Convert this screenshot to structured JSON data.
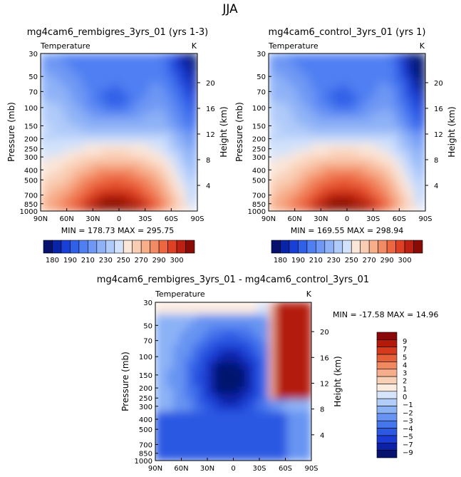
{
  "page_title": "JJA",
  "colors": {
    "cold": [
      "#06126e",
      "#0a24a8",
      "#1a3fd6",
      "#3060e8",
      "#4f7ff2",
      "#6e98f4",
      "#8fb2f7",
      "#b0cbf9",
      "#d2e2fb",
      "#fbe6d8",
      "#f9cdb4",
      "#f7ae8b",
      "#f28a63",
      "#ec6640",
      "#de4024",
      "#bb2010",
      "#8a0a06"
    ],
    "diff": [
      "#06126e",
      "#0c22a6",
      "#1a3cd4",
      "#2c58e2",
      "#4676ec",
      "#6794f2",
      "#8cb2f6",
      "#b2cdf8",
      "#d6e4fb",
      "#fcebdf",
      "#f8d0b6",
      "#f5ad8c",
      "#f08862",
      "#e55f38",
      "#d53a1c",
      "#b31a0a",
      "#8a0808"
    ]
  },
  "chart_data": [
    {
      "type": "contour",
      "title": "mg4cam6_rembigres_3yrs_01 (yrs 1-3)",
      "subtitle_left": "Temperature",
      "subtitle_right": "K",
      "xlabel": "",
      "ylabel": "Pressure (mb)",
      "ylabel_right": "Height (km)",
      "xticks": [
        "90N",
        "60N",
        "30N",
        "0",
        "30S",
        "60S",
        "90S"
      ],
      "yticks": [
        30,
        50,
        70,
        100,
        150,
        200,
        250,
        300,
        400,
        500,
        700,
        850,
        1000
      ],
      "height_ticks": [
        4,
        8,
        12,
        16,
        20
      ],
      "stats_text": "MIN = 178.73   MAX = 295.75",
      "min": 178.73,
      "max": 295.75,
      "colorbar_labels": [
        "180",
        "190",
        "210",
        "230",
        "250",
        "270",
        "290",
        "300"
      ],
      "levels": [
        180,
        185,
        190,
        200,
        210,
        220,
        230,
        240,
        250,
        260,
        270,
        280,
        290,
        295,
        300
      ]
    },
    {
      "type": "contour",
      "title": "mg4cam6_control_3yrs_01 (yrs 1)",
      "subtitle_left": "Temperature",
      "subtitle_right": "K",
      "xlabel": "",
      "ylabel": "Pressure (mb)",
      "ylabel_right": "Height (km)",
      "xticks": [
        "90N",
        "60N",
        "30N",
        "0",
        "30S",
        "60S",
        "90S"
      ],
      "yticks": [
        30,
        50,
        70,
        100,
        150,
        200,
        250,
        300,
        400,
        500,
        700,
        850,
        1000
      ],
      "height_ticks": [
        4,
        8,
        12,
        16,
        20
      ],
      "stats_text": "MIN = 169.55   MAX = 298.94",
      "min": 169.55,
      "max": 298.94,
      "colorbar_labels": [
        "180",
        "190",
        "210",
        "230",
        "250",
        "270",
        "290",
        "300"
      ],
      "levels": [
        180,
        185,
        190,
        200,
        210,
        220,
        230,
        240,
        250,
        260,
        270,
        280,
        290,
        295,
        300
      ]
    },
    {
      "type": "contour",
      "title": "mg4cam6_rembigres_3yrs_01 - mg4cam6_control_3yrs_01",
      "subtitle_left": "Temperature",
      "subtitle_right": "K",
      "xlabel": "",
      "ylabel": "Pressure (mb)",
      "ylabel_right": "Height (km)",
      "xticks": [
        "90N",
        "60N",
        "30N",
        "0",
        "30S",
        "60S",
        "90S"
      ],
      "yticks": [
        30,
        50,
        70,
        100,
        150,
        200,
        250,
        300,
        400,
        500,
        700,
        850,
        1000
      ],
      "height_ticks": [
        4,
        8,
        12,
        16,
        20
      ],
      "stats_text": "MIN = -17.58   MAX =  14.96",
      "min": -17.58,
      "max": 14.96,
      "colorbar_labels": [
        "9",
        "7",
        "5",
        "4",
        "3",
        "2",
        "1",
        "0",
        "−1",
        "−2",
        "−3",
        "−4",
        "−5",
        "−7",
        "−9"
      ]
    }
  ]
}
